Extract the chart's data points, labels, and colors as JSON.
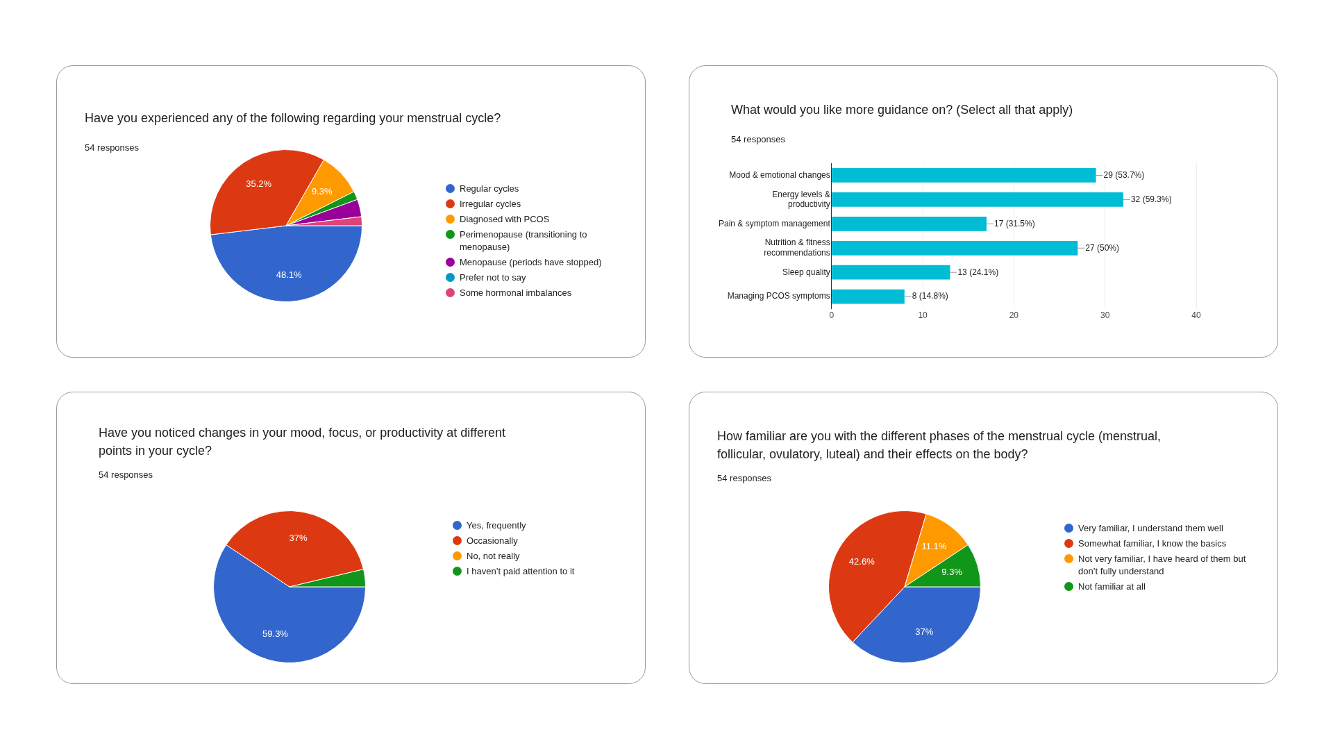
{
  "chart_data": [
    {
      "type": "pie",
      "title": "Have you experienced any of the following regarding your menstrual cycle?",
      "subtitle": "54 responses",
      "categories": [
        "Regular cycles",
        "Irregular cycles",
        "Diagnosed with PCOS",
        "Perimenopause (transitioning to menopause)",
        "Menopause (periods have stopped)",
        "Prefer not to say",
        "Some hormonal imbalances"
      ],
      "values": [
        48.1,
        35.2,
        9.3,
        1.8,
        3.7,
        0,
        1.9
      ],
      "colors": [
        "#3366cc",
        "#dc3912",
        "#ff9900",
        "#109618",
        "#990099",
        "#0099c6",
        "#dd4477"
      ],
      "value_labels": [
        "48.1%",
        "35.2%",
        "9.3%",
        null,
        null,
        null,
        null
      ],
      "legend": "right"
    },
    {
      "type": "bar",
      "orientation": "horizontal",
      "title": "What would you like more guidance on? (Select all that apply)",
      "subtitle": "54 responses",
      "categories": [
        "Mood & emotional changes",
        "Energy levels & productivity",
        "Pain & symptom management",
        "Nutrition & fitness recommendations",
        "Sleep quality",
        "Managing PCOS symptoms"
      ],
      "values": [
        29,
        32,
        17,
        27,
        13,
        8
      ],
      "color": "#00bcd4",
      "value_labels": [
        "29 (53.7%)",
        "32 (59.3%)",
        "17 (31.5%)",
        "27 (50%)",
        "13 (24.1%)",
        "8 (14.8%)"
      ],
      "xlim": [
        0,
        40
      ],
      "xticks": [
        0,
        10,
        20,
        30,
        40
      ],
      "grid": "x"
    },
    {
      "type": "pie",
      "title": "Have you noticed changes in your mood, focus, or productivity at different points in your cycle?",
      "subtitle": "54 responses",
      "categories": [
        "Yes, frequently",
        "Occasionally",
        "No, not really",
        "I haven’t paid attention to it"
      ],
      "values": [
        59.3,
        37,
        0,
        3.7
      ],
      "colors": [
        "#3366cc",
        "#dc3912",
        "#ff9900",
        "#109618"
      ],
      "value_labels": [
        "59.3%",
        "37%",
        null,
        null
      ],
      "legend": "right"
    },
    {
      "type": "pie",
      "title": "How familiar are you with the different phases of the menstrual cycle (menstrual, follicular, ovulatory, luteal) and their effects on the body?",
      "subtitle": "54 responses",
      "categories": [
        "Very familiar, I understand them well",
        "Somewhat familiar, I know the basics",
        "Not very familiar, I have heard of them but don’t fully understand",
        "Not familiar at all"
      ],
      "values": [
        37,
        42.6,
        11.1,
        9.3
      ],
      "colors": [
        "#3366cc",
        "#dc3912",
        "#ff9900",
        "#109618"
      ],
      "value_labels": [
        "37%",
        "42.6%",
        "11.1%",
        "9.3%"
      ],
      "legend": "right"
    }
  ]
}
